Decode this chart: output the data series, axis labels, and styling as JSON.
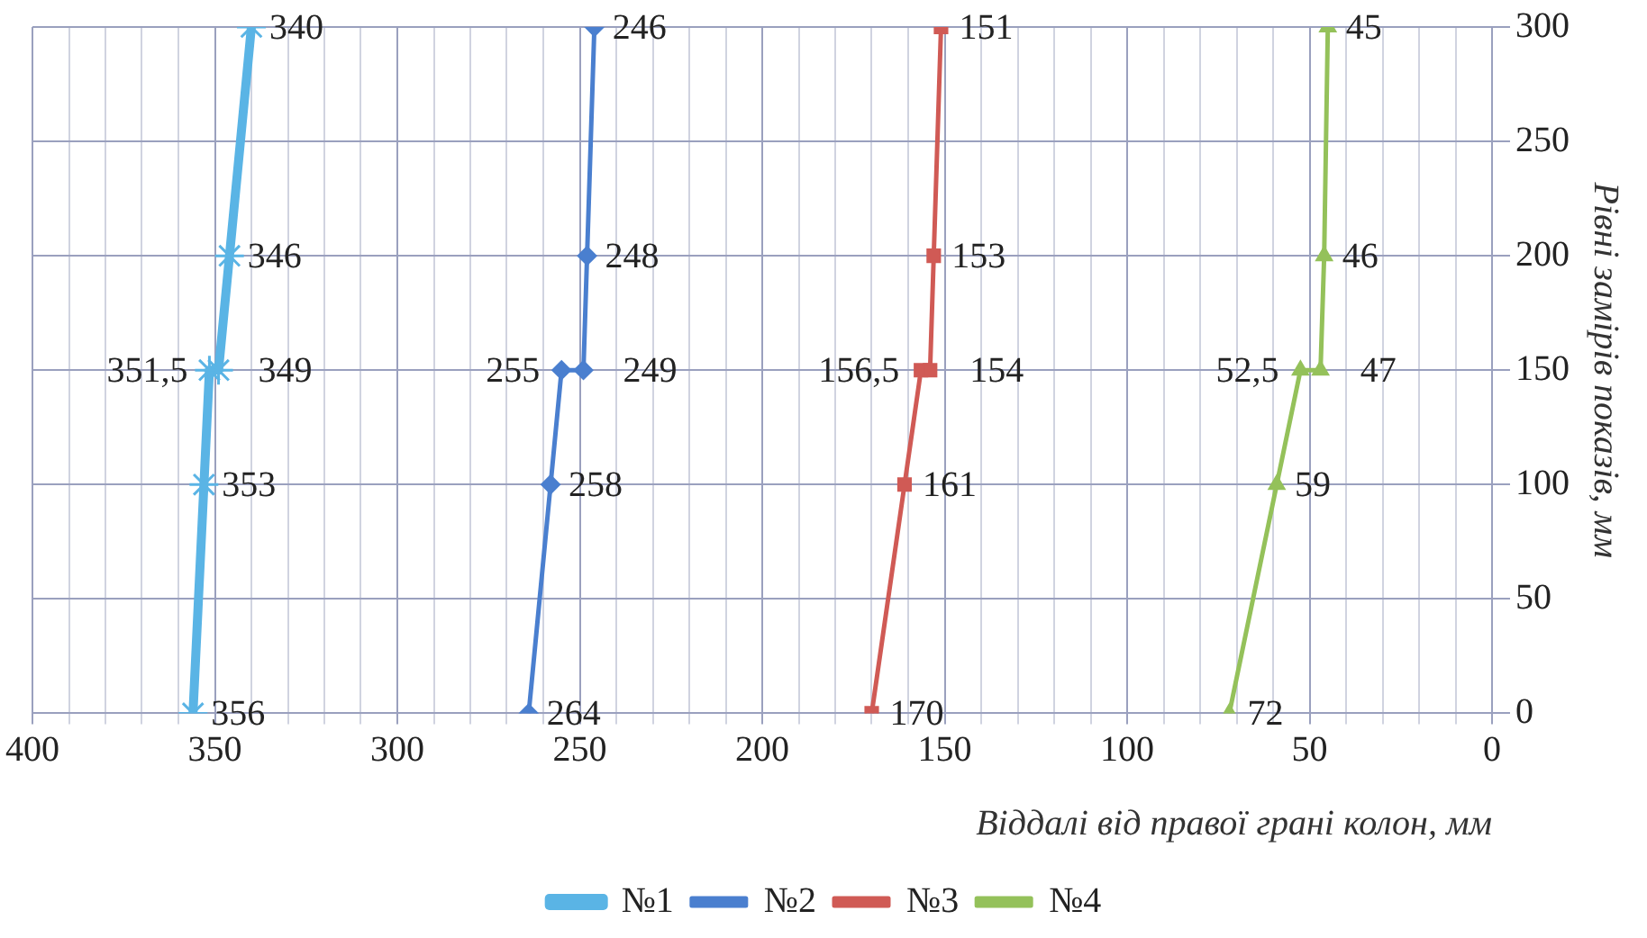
{
  "chart_data": {
    "type": "line",
    "orientation": "horizontal",
    "xlabel": "Віддалі від правої грані колон, мм",
    "ylabel": "Рівні замірів показів, мм",
    "xlim": [
      400,
      0
    ],
    "ylim": [
      0,
      300
    ],
    "xticks": [
      400,
      {
        "value": 390,
        "label": null
      },
      {
        "value": 380,
        "label": null
      },
      {
        "value": 370,
        "label": null
      },
      {
        "value": 360,
        "label": null
      },
      350,
      {
        "value": 340,
        "label": null
      },
      {
        "value": 330,
        "label": null
      },
      {
        "value": 320,
        "label": null
      },
      {
        "value": 310,
        "label": null
      },
      300,
      {
        "value": 290,
        "label": null
      },
      {
        "value": 280,
        "label": null
      },
      {
        "value": 270,
        "label": null
      },
      {
        "value": 260,
        "label": null
      },
      250,
      {
        "value": 240,
        "label": null
      },
      {
        "value": 230,
        "label": null
      },
      {
        "value": 220,
        "label": null
      },
      {
        "value": 210,
        "label": null
      },
      200,
      {
        "value": 190,
        "label": null
      },
      {
        "value": 180,
        "label": null
      },
      {
        "value": 170,
        "label": null
      },
      {
        "value": 160,
        "label": null
      },
      150,
      {
        "value": 140,
        "label": null
      },
      {
        "value": 130,
        "label": null
      },
      {
        "value": 120,
        "label": null
      },
      {
        "value": 110,
        "label": null
      },
      100,
      {
        "value": 90,
        "label": null
      },
      {
        "value": 80,
        "label": null
      },
      {
        "value": 70,
        "label": null
      },
      {
        "value": 60,
        "label": null
      },
      50,
      {
        "value": 40,
        "label": null
      },
      {
        "value": 30,
        "label": null
      },
      {
        "value": 20,
        "label": null
      },
      {
        "value": 10,
        "label": null
      },
      0
    ],
    "yticks": [
      0,
      50,
      100,
      150,
      200,
      250,
      300
    ],
    "grid": true,
    "legend": "bottom",
    "series": [
      {
        "name": "№1",
        "color": "#5ab4e5",
        "marker": "cross",
        "x": [
          0,
          100,
          150,
          150,
          200,
          300
        ],
        "values": [
          356,
          353,
          351.5,
          349,
          346,
          340
        ],
        "value_labels": [
          "356",
          "353",
          "351,5",
          "349",
          "346",
          "340"
        ]
      },
      {
        "name": "№2",
        "color": "#4a7fcf",
        "marker": "diamond",
        "x": [
          0,
          100,
          150,
          150,
          200,
          300
        ],
        "values": [
          264,
          258,
          255,
          249,
          248,
          246
        ],
        "value_labels": [
          "264",
          "258",
          "255",
          "249",
          "248",
          "246"
        ]
      },
      {
        "name": "№3",
        "color": "#d05a55",
        "marker": "square",
        "x": [
          0,
          100,
          150,
          150,
          200,
          300
        ],
        "values": [
          170,
          161,
          156.5,
          154,
          153,
          151
        ],
        "value_labels": [
          "170",
          "161",
          "156,5",
          "154",
          "153",
          "151"
        ]
      },
      {
        "name": "№4",
        "color": "#94c15a",
        "marker": "triangle",
        "x": [
          0,
          100,
          150,
          150,
          200,
          300
        ],
        "values": [
          72,
          59,
          52.5,
          47,
          46,
          45
        ],
        "value_labels": [
          "72",
          "59",
          "52,5",
          "47",
          "46",
          "45"
        ]
      }
    ]
  }
}
